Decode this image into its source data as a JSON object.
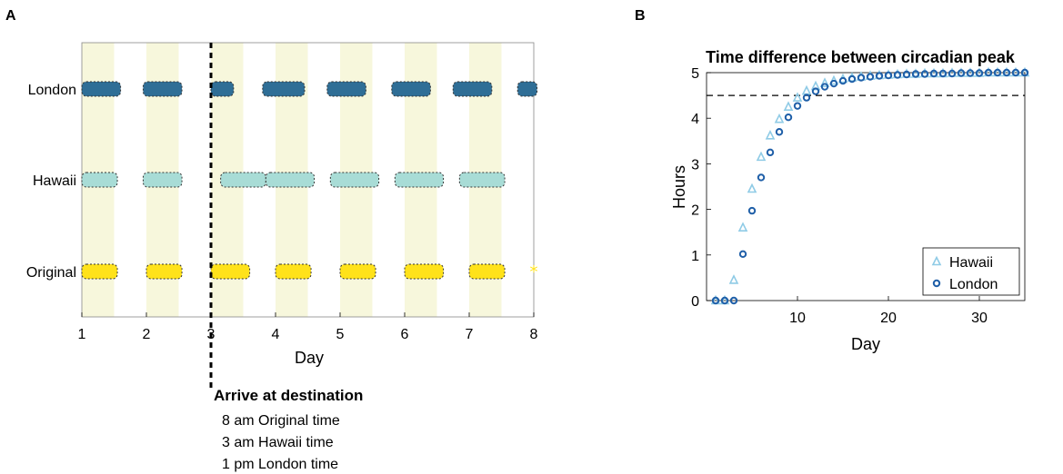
{
  "panel_labels": [
    "A",
    "B"
  ],
  "chart_data": [
    {
      "type": "timeline",
      "panel": "A",
      "xlabel": "Day",
      "xlim": [
        1,
        8
      ],
      "x_ticks": [
        1,
        2,
        3,
        4,
        5,
        6,
        7,
        8
      ],
      "rows": [
        "London",
        "Hawaii",
        "Original"
      ],
      "light_periods": [
        [
          1,
          1.5
        ],
        [
          2,
          2.5
        ],
        [
          3,
          3.5
        ],
        [
          4,
          4.5
        ],
        [
          5,
          5.5
        ],
        [
          6,
          6.5
        ],
        [
          7,
          7.5
        ]
      ],
      "light_color": "#f7f7dc",
      "series": [
        {
          "name": "London",
          "color": "#2f6e96",
          "segments": [
            [
              1.0,
              1.6
            ],
            [
              1.95,
              2.55
            ],
            [
              3.0,
              3.35
            ],
            [
              3.8,
              4.45
            ],
            [
              4.8,
              5.4
            ],
            [
              5.8,
              6.4
            ],
            [
              6.75,
              7.35
            ],
            [
              7.75,
              8.05
            ]
          ]
        },
        {
          "name": "Hawaii",
          "color": "#a8dcd6",
          "segments": [
            [
              1.0,
              1.55
            ],
            [
              1.95,
              2.55
            ],
            [
              3.15,
              3.85
            ],
            [
              3.85,
              4.6
            ],
            [
              4.85,
              5.6
            ],
            [
              5.85,
              6.6
            ],
            [
              6.85,
              7.55
            ]
          ]
        },
        {
          "name": "Original",
          "color": "#ffe21a",
          "segments": [
            [
              1.0,
              1.55
            ],
            [
              2.0,
              2.55
            ],
            [
              3.0,
              3.6
            ],
            [
              4.0,
              4.55
            ],
            [
              5.0,
              5.55
            ],
            [
              6.0,
              6.6
            ],
            [
              7.0,
              7.55
            ]
          ]
        }
      ],
      "original_marker": {
        "x": 8.0,
        "symbol": "*"
      },
      "arrival": {
        "x": 3.0,
        "title": "Arrive at destination",
        "lines": [
          "8 am Original time",
          "3 am Hawaii time",
          "1 pm London time"
        ]
      }
    },
    {
      "type": "scatter",
      "panel": "B",
      "title": "Time difference between circadian peak",
      "xlabel": "Day",
      "ylabel": "Hours",
      "xlim": [
        0,
        35
      ],
      "ylim": [
        0,
        5
      ],
      "x_ticks": [
        10,
        20,
        30
      ],
      "y_ticks": [
        0,
        1,
        2,
        3,
        4,
        5
      ],
      "reference_line": 4.5,
      "legend_position": "bottom-right",
      "series": [
        {
          "name": "Hawaii",
          "marker": "triangle",
          "color": "#8fcbe6",
          "x": [
            1,
            2,
            3,
            4,
            5,
            6,
            7,
            8,
            9,
            10,
            11,
            12,
            13,
            14,
            15,
            16,
            17,
            18,
            19,
            20,
            21,
            22,
            23,
            24,
            25,
            26,
            27,
            28,
            29,
            30,
            31,
            32,
            33,
            34,
            35
          ],
          "y": [
            0,
            0,
            0.45,
            1.6,
            2.45,
            3.15,
            3.62,
            3.98,
            4.25,
            4.45,
            4.6,
            4.7,
            4.77,
            4.82,
            4.86,
            4.89,
            4.91,
            4.93,
            4.94,
            4.95,
            4.96,
            4.97,
            4.97,
            4.98,
            4.98,
            4.98,
            4.99,
            4.99,
            4.99,
            4.99,
            5.0,
            5.0,
            5.0,
            5.0,
            5.0
          ]
        },
        {
          "name": "London",
          "marker": "circle",
          "color": "#1f5fa8",
          "x": [
            1,
            2,
            3,
            4,
            5,
            6,
            7,
            8,
            9,
            10,
            11,
            12,
            13,
            14,
            15,
            16,
            17,
            18,
            19,
            20,
            21,
            22,
            23,
            24,
            25,
            26,
            27,
            28,
            29,
            30,
            31,
            32,
            33,
            34,
            35
          ],
          "y": [
            0,
            0,
            0,
            1.02,
            1.97,
            2.7,
            3.25,
            3.7,
            4.02,
            4.27,
            4.45,
            4.59,
            4.69,
            4.76,
            4.82,
            4.86,
            4.89,
            4.91,
            4.93,
            4.94,
            4.95,
            4.96,
            4.97,
            4.97,
            4.98,
            4.98,
            4.98,
            4.99,
            4.99,
            4.99,
            5.0,
            5.0,
            5.0,
            5.0,
            5.0
          ]
        }
      ]
    }
  ]
}
